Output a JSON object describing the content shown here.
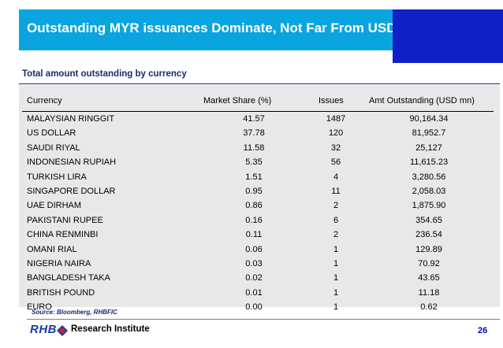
{
  "slide": {
    "title": "Outstanding MYR issuances Dominate, Not Far From USD",
    "subtitle": "Total amount outstanding by currency",
    "colors": {
      "title_bar": "#0aa5e0",
      "title_accent": "#1020c8",
      "table_bg": "#e8e8e8",
      "text_dark_blue": "#1a2a6c"
    }
  },
  "table": {
    "headers": {
      "currency": "Currency",
      "market_share": "Market Share (%)",
      "issues": "Issues",
      "amt": "Amt Outstanding (USD mn)"
    },
    "rows": [
      {
        "currency": "MALAYSIAN RINGGIT",
        "market_share": "41.57",
        "issues": "1487",
        "amt": "90,164.34"
      },
      {
        "currency": "US DOLLAR",
        "market_share": "37.78",
        "issues": "120",
        "amt": "81,952.7"
      },
      {
        "currency": "SAUDI RIYAL",
        "market_share": "11.58",
        "issues": "32",
        "amt": "25,127"
      },
      {
        "currency": "INDONESIAN RUPIAH",
        "market_share": "5.35",
        "issues": "56",
        "amt": "11,615.23"
      },
      {
        "currency": "TURKISH LIRA",
        "market_share": "1.51",
        "issues": "4",
        "amt": "3,280.56"
      },
      {
        "currency": "SINGAPORE DOLLAR",
        "market_share": "0.95",
        "issues": "11",
        "amt": "2,058.03"
      },
      {
        "currency": "UAE DIRHAM",
        "market_share": "0.86",
        "issues": "2",
        "amt": "1,875.90"
      },
      {
        "currency": "PAKISTANI RUPEE",
        "market_share": "0.16",
        "issues": "6",
        "amt": "354.65"
      },
      {
        "currency": "CHINA RENMINBI",
        "market_share": "0.11",
        "issues": "2",
        "amt": "236.54"
      },
      {
        "currency": "OMANI RIAL",
        "market_share": "0.06",
        "issues": "1",
        "amt": "129.89"
      },
      {
        "currency": "NIGERIA NAIRA",
        "market_share": "0.03",
        "issues": "1",
        "amt": "70.92"
      },
      {
        "currency": "BANGLADESH TAKA",
        "market_share": "0.02",
        "issues": "1",
        "amt": "43.65"
      },
      {
        "currency": "BRITISH POUND",
        "market_share": "0.01",
        "issues": "1",
        "amt": "11.18"
      },
      {
        "currency": "EURO",
        "market_share": "0.00",
        "issues": "1",
        "amt": "0.62"
      }
    ]
  },
  "footer": {
    "source": "Source: Bloomberg, RHBFIC",
    "logo": "RHB",
    "logo_icon": "rhb-logo-icon",
    "institute": "Research Institute",
    "page_number": "26"
  }
}
